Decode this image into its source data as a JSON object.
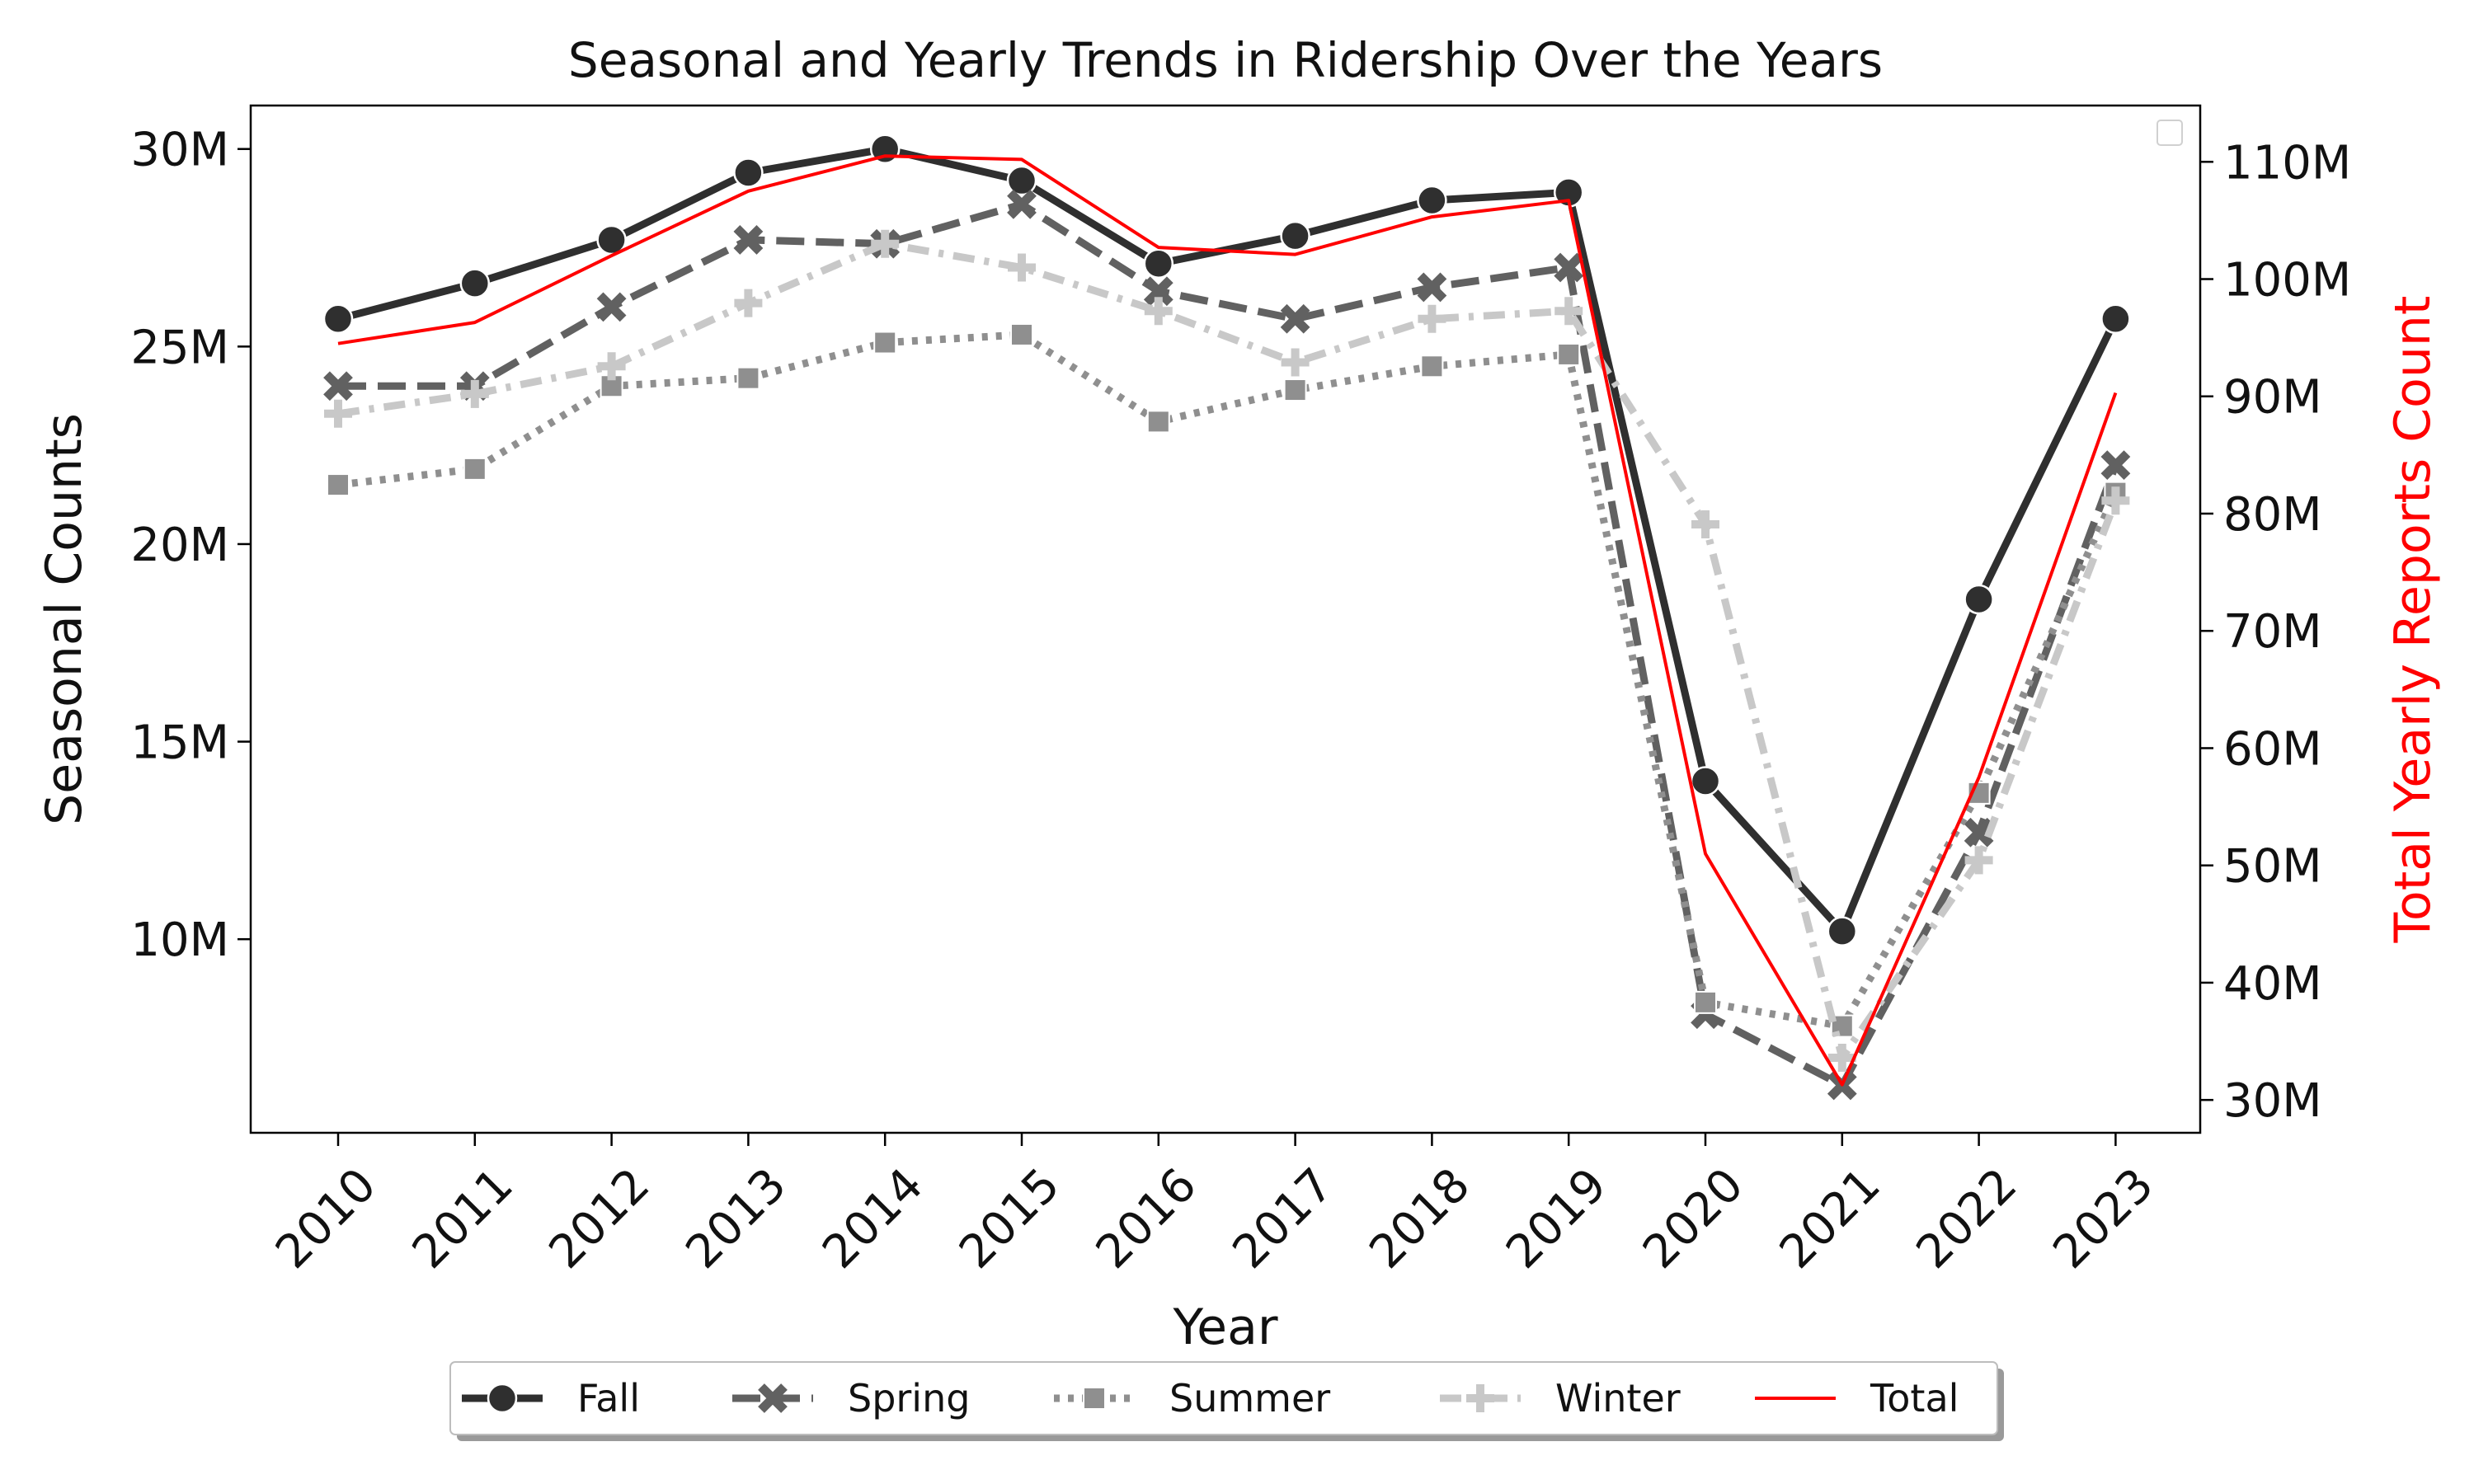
{
  "chart_data": {
    "type": "line",
    "title": "Seasonal and Yearly Trends in Ridership Over the Years",
    "xlabel": "Year",
    "ylabel": "Seasonal Counts",
    "y2label": "Total Yearly Reports Count",
    "categories": [
      "2010",
      "2011",
      "2012",
      "2013",
      "2014",
      "2015",
      "2016",
      "2017",
      "2018",
      "2019",
      "2020",
      "2021",
      "2022",
      "2023"
    ],
    "y_ticks": [
      "10M",
      "15M",
      "20M",
      "25M",
      "30M"
    ],
    "y2_ticks": [
      "30M",
      "40M",
      "50M",
      "60M",
      "70M",
      "80M",
      "90M",
      "100M",
      "110M"
    ],
    "ylim": [
      5100000,
      31100000
    ],
    "y2lim": [
      27200000,
      114800000
    ],
    "grid": false,
    "legend_position": "bottom",
    "series": [
      {
        "name": "Fall",
        "axis": "left",
        "color": "#2f2f2f",
        "marker": "circle",
        "dash": "solid",
        "values": [
          25700000,
          26600000,
          27700000,
          29400000,
          30000000,
          29200000,
          27100000,
          27800000,
          28700000,
          28900000,
          14000000,
          10200000,
          18600000,
          25700000
        ]
      },
      {
        "name": "Spring",
        "axis": "left",
        "color": "#616161",
        "marker": "x",
        "dash": "dashed",
        "values": [
          24000000,
          24000000,
          26000000,
          27700000,
          27600000,
          28600000,
          26400000,
          25700000,
          26500000,
          27000000,
          8100000,
          6300000,
          12700000,
          22000000
        ]
      },
      {
        "name": "Summer",
        "axis": "left",
        "color": "#8f8f8f",
        "marker": "square",
        "dash": "dotted",
        "values": [
          21500000,
          21900000,
          24000000,
          24200000,
          25100000,
          25300000,
          23100000,
          23900000,
          24500000,
          24800000,
          8400000,
          7800000,
          13700000,
          21300000
        ]
      },
      {
        "name": "Winter",
        "axis": "left",
        "color": "#c8c8c8",
        "marker": "plus",
        "dash": "dashdot",
        "values": [
          23300000,
          23800000,
          24500000,
          26100000,
          27600000,
          27000000,
          25900000,
          24600000,
          25700000,
          25900000,
          20500000,
          7000000,
          12000000,
          21100000
        ]
      },
      {
        "name": "Total",
        "axis": "right",
        "color": "#ff0000",
        "marker": "none",
        "dash": "solid",
        "values": [
          94500000,
          96300000,
          102000000,
          107500000,
          110500000,
          110200000,
          102700000,
          102100000,
          105300000,
          106700000,
          51000000,
          31300000,
          57500000,
          90300000
        ]
      }
    ]
  }
}
